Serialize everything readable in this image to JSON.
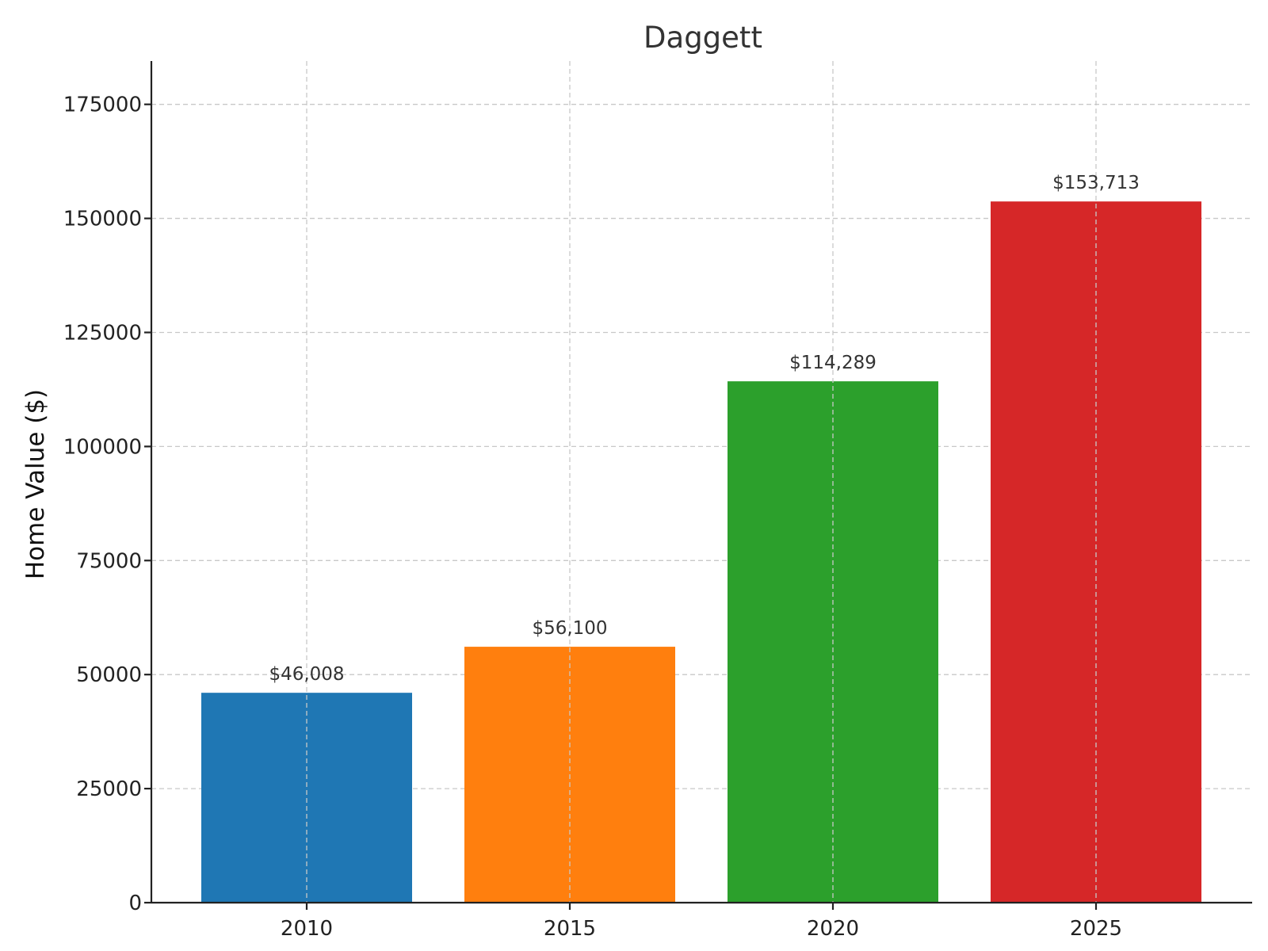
{
  "chart_data": {
    "type": "bar",
    "title": "Daggett",
    "xlabel": "",
    "ylabel": "Home Value ($)",
    "categories": [
      "2010",
      "2015",
      "2020",
      "2025"
    ],
    "values": [
      46008,
      56100,
      114289,
      153713
    ],
    "data_labels": [
      "$46,008",
      "$56,100",
      "$114,289",
      "$153,713"
    ],
    "colors": [
      "#1f77b4",
      "#ff7f0e",
      "#2ca02c",
      "#d62728"
    ],
    "ylim": [
      0,
      184500
    ],
    "yticks": [
      0,
      25000,
      50000,
      75000,
      100000,
      125000,
      150000,
      175000
    ],
    "grid": true,
    "legend": "none"
  }
}
